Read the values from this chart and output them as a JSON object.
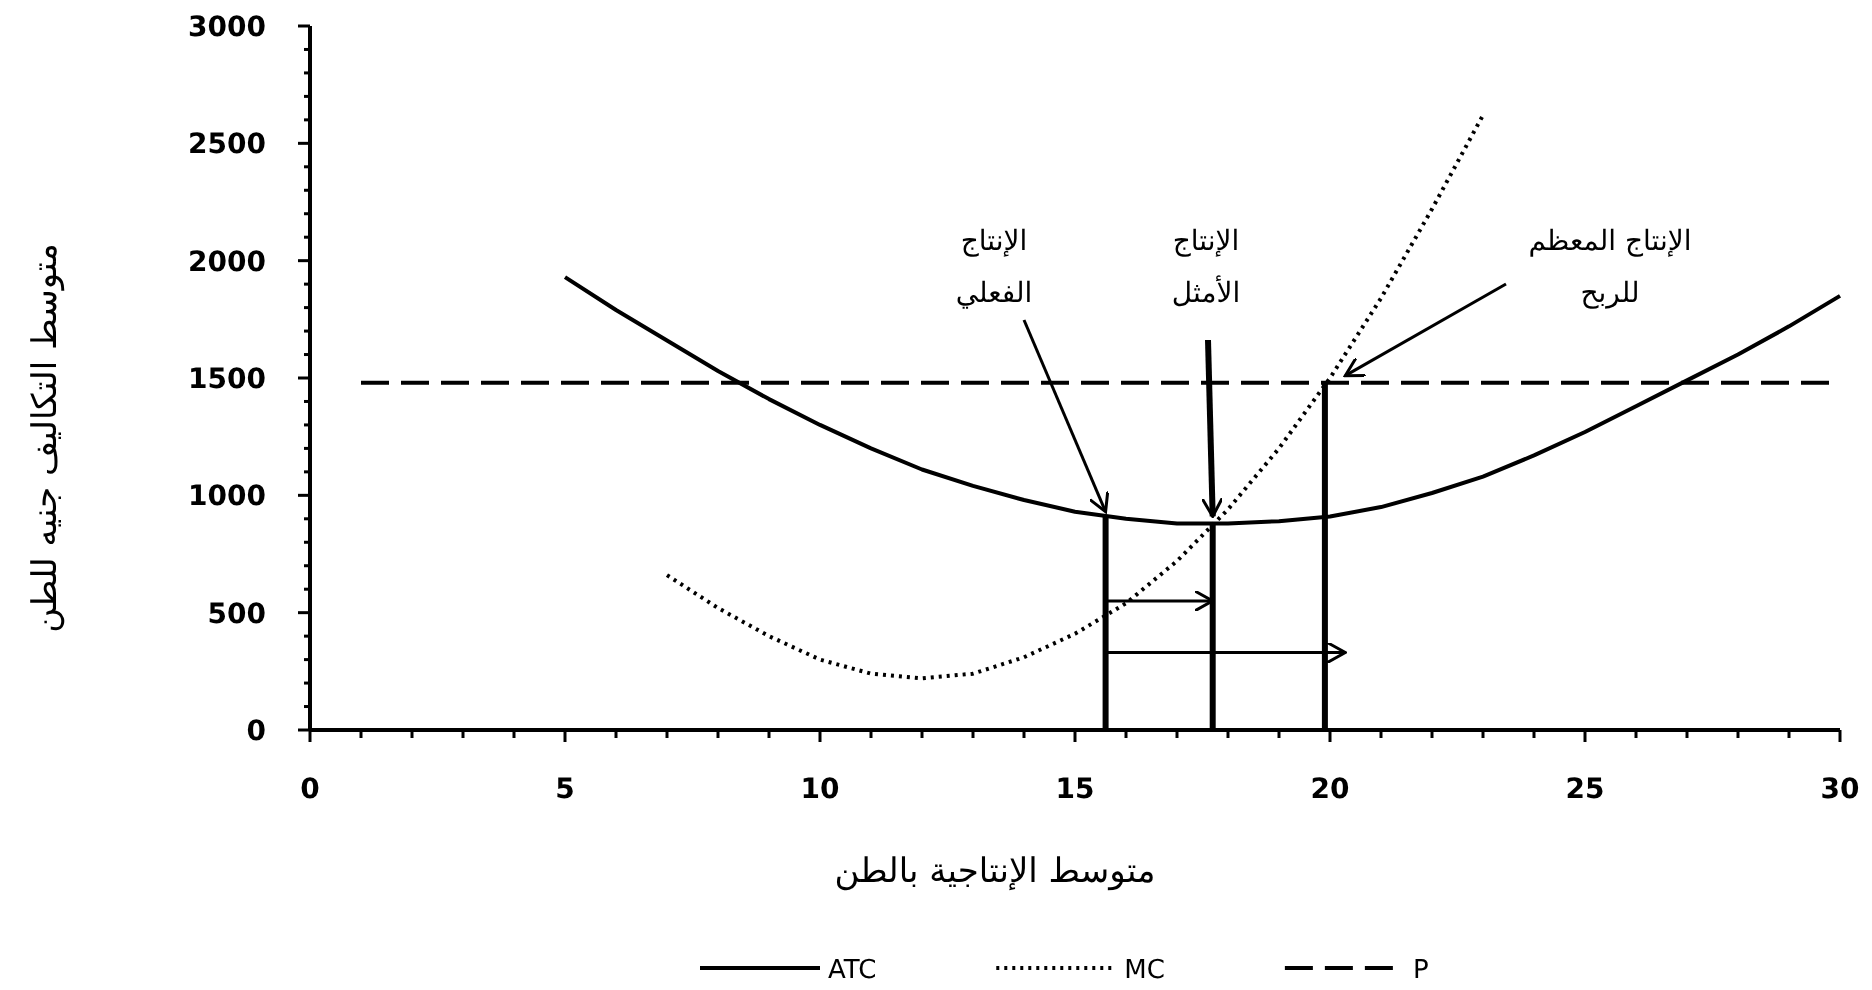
{
  "chart_data": {
    "type": "line",
    "xlabel": "متوسط الإنتاجية بالطن",
    "ylabel": "متوسط التكاليف جنيه للطن",
    "legend": "bottom",
    "xlim": [
      0,
      30
    ],
    "ylim": [
      0,
      3000
    ],
    "xticks": [
      0,
      {
        "value": 1,
        "label": null
      },
      {
        "value": 2,
        "label": null
      },
      {
        "value": 3,
        "label": null
      },
      {
        "value": 4,
        "label": null
      },
      5,
      {
        "value": 6,
        "label": null
      },
      {
        "value": 7,
        "label": null
      },
      {
        "value": 8,
        "label": null
      },
      {
        "value": 9,
        "label": null
      },
      10,
      {
        "value": 11,
        "label": null
      },
      {
        "value": 12,
        "label": null
      },
      {
        "value": 13,
        "label": null
      },
      {
        "value": 14,
        "label": null
      },
      15,
      {
        "value": 16,
        "label": null
      },
      {
        "value": 17,
        "label": null
      },
      {
        "value": 18,
        "label": null
      },
      {
        "value": 19,
        "label": null
      },
      20,
      {
        "value": 21,
        "label": null
      },
      {
        "value": 22,
        "label": null
      },
      {
        "value": 23,
        "label": null
      },
      {
        "value": 24,
        "label": null
      },
      25,
      {
        "value": 26,
        "label": null
      },
      {
        "value": 27,
        "label": null
      },
      {
        "value": 28,
        "label": null
      },
      {
        "value": 29,
        "label": null
      },
      30
    ],
    "yticks": [
      0,
      {
        "value": 100,
        "label": null
      },
      {
        "value": 200,
        "label": null
      },
      {
        "value": 300,
        "label": null
      },
      {
        "value": 400,
        "label": null
      },
      500,
      {
        "value": 600,
        "label": null
      },
      {
        "value": 700,
        "label": null
      },
      {
        "value": 800,
        "label": null
      },
      {
        "value": 900,
        "label": null
      },
      1000,
      {
        "value": 1100,
        "label": null
      },
      {
        "value": 1200,
        "label": null
      },
      {
        "value": 1300,
        "label": null
      },
      {
        "value": 1400,
        "label": null
      },
      1500,
      {
        "value": 1600,
        "label": null
      },
      {
        "value": 1700,
        "label": null
      },
      {
        "value": 1800,
        "label": null
      },
      {
        "value": 1900,
        "label": null
      },
      2000,
      {
        "value": 2100,
        "label": null
      },
      {
        "value": 2200,
        "label": null
      },
      {
        "value": 2300,
        "label": null
      },
      {
        "value": 2400,
        "label": null
      },
      2500,
      {
        "value": 2600,
        "label": null
      },
      {
        "value": 2700,
        "label": null
      },
      {
        "value": 2800,
        "label": null
      },
      {
        "value": 2900,
        "label": null
      },
      3000
    ],
    "series": [
      {
        "name": "ATC",
        "color": "#000000",
        "line_style": "solid",
        "x": [
          5,
          6,
          7,
          8,
          9,
          10,
          11,
          12,
          13,
          14,
          15,
          16,
          17,
          18,
          19,
          20,
          21,
          22,
          23,
          24,
          25,
          26,
          27,
          28,
          29,
          30
        ],
        "values": [
          1930,
          1790,
          1660,
          1530,
          1410,
          1300,
          1200,
          1110,
          1040,
          980,
          930,
          900,
          880,
          880,
          890,
          910,
          950,
          1010,
          1080,
          1170,
          1270,
          1380,
          1490,
          1600,
          1720,
          1850
        ]
      },
      {
        "name": "MC",
        "color": "#000000",
        "line_style": "dotted",
        "x": [
          7,
          8,
          9,
          10,
          11,
          12,
          13,
          14,
          15,
          16,
          17,
          18,
          19,
          20,
          21,
          22,
          23
        ],
        "values": [
          660,
          520,
          400,
          300,
          240,
          220,
          240,
          310,
          410,
          540,
          720,
          940,
          1200,
          1500,
          1840,
          2220,
          2620
        ]
      },
      {
        "name": "P",
        "color": "#000000",
        "line_style": "dashed",
        "x": [
          1,
          30
        ],
        "values": [
          1480,
          1480
        ]
      },
      {
        "color": "#000000",
        "line_style": "solid",
        "x": [
          15.6,
          15.6
        ],
        "values": [
          0,
          910
        ]
      },
      {
        "color": "#000000",
        "line_style": "solid",
        "x": [
          17.7,
          17.7
        ],
        "values": [
          0,
          880
        ]
      },
      {
        "color": "#000000",
        "line_style": "solid",
        "x": [
          19.9,
          19.9
        ],
        "values": [
          0,
          1480
        ]
      }
    ],
    "annotations": [
      {
        "text": "الإنتاج الفعلي",
        "x": 15.6,
        "y": 930
      },
      {
        "text": "الإنتاج الأمثل",
        "x": 17.7,
        "y": 910
      },
      {
        "text": "الإنتاج المعظم للربح",
        "x": 20.3,
        "y": 1510
      }
    ]
  }
}
